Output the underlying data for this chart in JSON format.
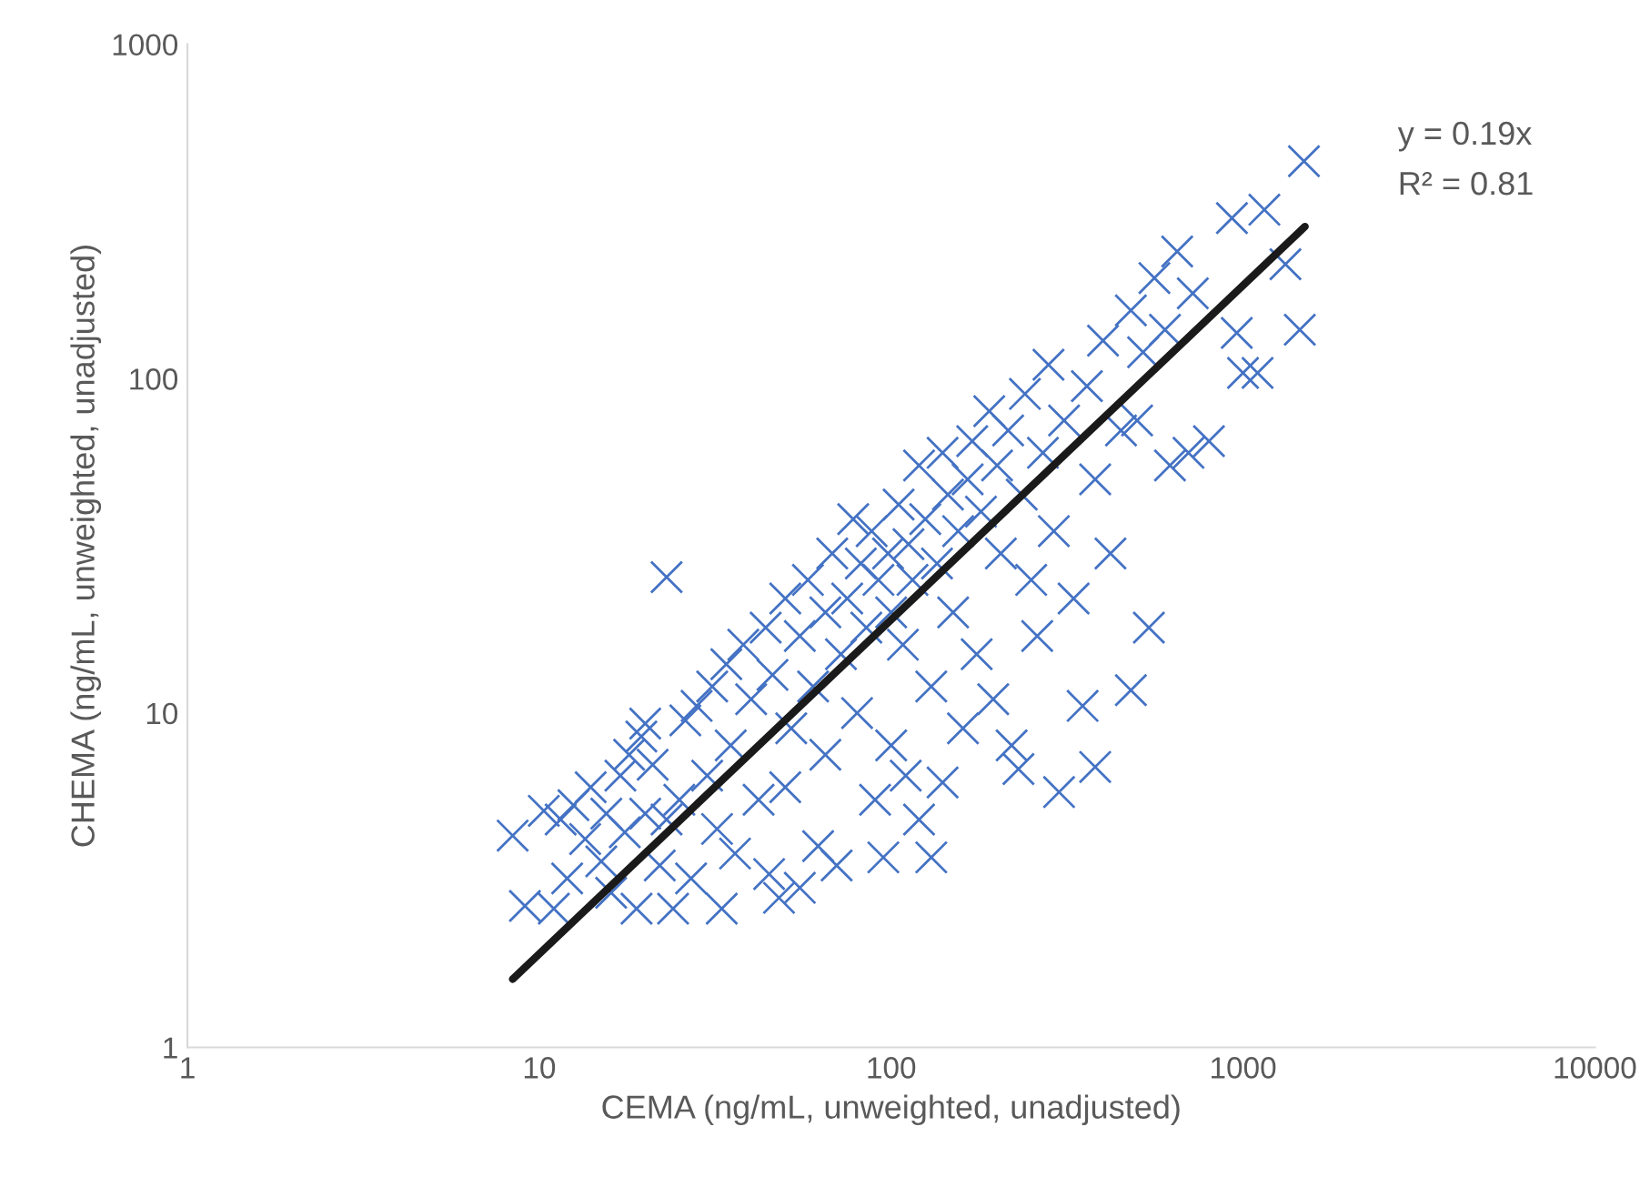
{
  "chart_data": {
    "type": "scatter",
    "xlabel": "CEMA (ng/mL, unweighted, unadjusted)",
    "ylabel": "CHEMA (ng/mL, unweighted, unadjusted)",
    "log": "xy",
    "grid": false,
    "legend": false,
    "marker": "cross",
    "xlim": [
      1,
      10000
    ],
    "xticks": [
      1,
      10,
      100,
      1000,
      10000
    ],
    "ylim": [
      1,
      1000
    ],
    "yticks": [
      1,
      10,
      100,
      1000
    ],
    "annotations": [
      "y = 0.19x",
      "R² = 0.81"
    ],
    "series": [
      {
        "color": "#4472c4",
        "x": [
          8.4,
          9.1,
          10.3,
          11,
          11.5,
          12,
          12.5,
          13.5,
          14,
          15,
          15.5,
          16,
          17,
          17.5,
          18,
          18.9,
          19.5,
          20,
          20,
          21,
          22,
          23,
          23,
          24,
          25,
          26,
          27,
          28,
          30,
          31,
          32,
          33,
          34,
          35,
          36,
          38,
          40,
          42,
          44,
          45,
          46,
          48,
          50,
          50,
          52,
          55,
          55,
          58,
          60,
          62,
          65,
          65,
          68,
          70,
          72,
          75,
          78,
          80,
          82,
          85,
          88,
          90,
          92,
          95,
          98,
          100,
          100,
          105,
          108,
          110,
          112,
          115,
          120,
          120,
          125,
          130,
          130,
          135,
          140,
          140,
          145,
          150,
          155,
          160,
          165,
          170,
          175,
          180,
          190,
          195,
          200,
          205,
          215,
          220,
          230,
          235,
          240,
          250,
          260,
          270,
          280,
          290,
          300,
          310,
          330,
          350,
          360,
          380,
          380,
          400,
          420,
          450,
          480,
          480,
          500,
          520,
          540,
          560,
          600,
          620,
          650,
          700,
          720,
          800,
          930,
          960,
          1000,
          1100,
          1150,
          1320,
          1450,
          1490
        ],
        "values": [
          4.3,
          2.65,
          5.1,
          2.6,
          4.8,
          3.2,
          5.3,
          4.2,
          6,
          3.6,
          5,
          2.9,
          6.5,
          4.4,
          7.5,
          2.6,
          8.5,
          9.3,
          5,
          7,
          3.5,
          25.5,
          4.8,
          2.6,
          5.5,
          9.5,
          3.2,
          10.5,
          6.5,
          12,
          4.5,
          2.6,
          14,
          8,
          3.8,
          16,
          11,
          5.5,
          18,
          3.3,
          13,
          2.8,
          22,
          6,
          9,
          17,
          3,
          25,
          12,
          4,
          20,
          7.5,
          30,
          3.5,
          15,
          22,
          38,
          10,
          28,
          18,
          35,
          5.5,
          25,
          3.7,
          30,
          20,
          8,
          42,
          16,
          6.5,
          32,
          25,
          4.8,
          55,
          38,
          12,
          3.7,
          28,
          60,
          6.2,
          45,
          20,
          35,
          9,
          50,
          65,
          15,
          40,
          80,
          11,
          55,
          30,
          70,
          8,
          6.8,
          45,
          90,
          25,
          17,
          60,
          110,
          35,
          5.8,
          75,
          22,
          10.5,
          95,
          50,
          6.9,
          130,
          30,
          70,
          11.7,
          160,
          75,
          120,
          18,
          200,
          140,
          55,
          240,
          60,
          180,
          65,
          302,
          137,
          104,
          104,
          320,
          220,
          140,
          447
        ]
      },
      {
        "type": "line",
        "color": "#1a1a1a",
        "marker": "none",
        "line_style": "solid",
        "x": [
          8.4,
          1500
        ],
        "values": [
          1.6,
          285
        ]
      }
    ]
  }
}
